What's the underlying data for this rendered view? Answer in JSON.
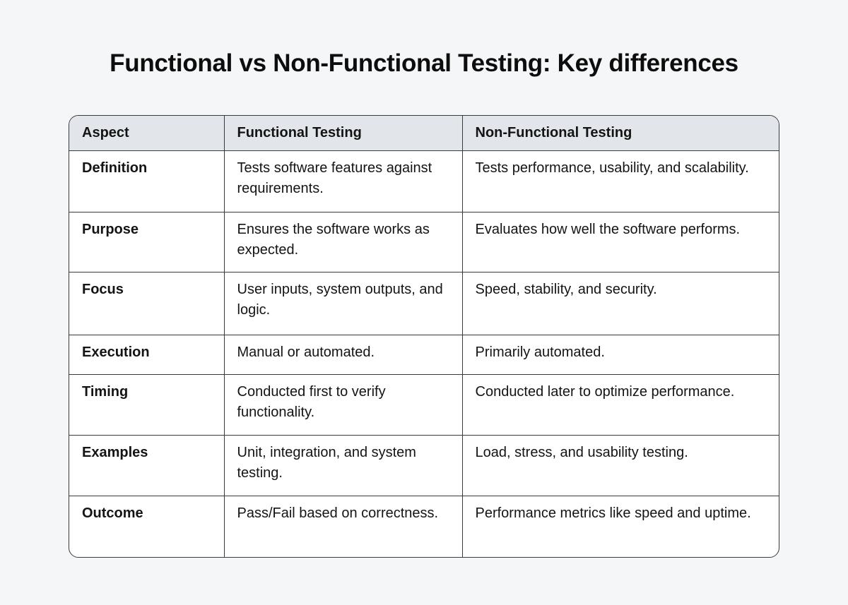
{
  "title": "Functional vs Non-Functional Testing: Key differences",
  "table": {
    "headers": [
      "Aspect",
      "Functional Testing",
      "Non-Functional Testing"
    ],
    "rows": [
      [
        "Definition",
        "Tests software features against requirements.",
        "Tests performance, usability, and scalability."
      ],
      [
        "Purpose",
        "Ensures the software works as expected.",
        "Evaluates how well the software performs."
      ],
      [
        "Focus",
        "User inputs, system outputs, and logic.",
        "Speed, stability, and security."
      ],
      [
        "Execution",
        "Manual or automated.",
        "Primarily automated."
      ],
      [
        "Timing",
        "Conducted first to verify functionality.",
        "Conducted later to optimize performance."
      ],
      [
        "Examples",
        "Unit, integration, and system testing.",
        "Load, stress, and usability testing."
      ],
      [
        "Outcome",
        "Pass/Fail based on correctness.",
        "Performance metrics like speed and uptime."
      ]
    ]
  }
}
